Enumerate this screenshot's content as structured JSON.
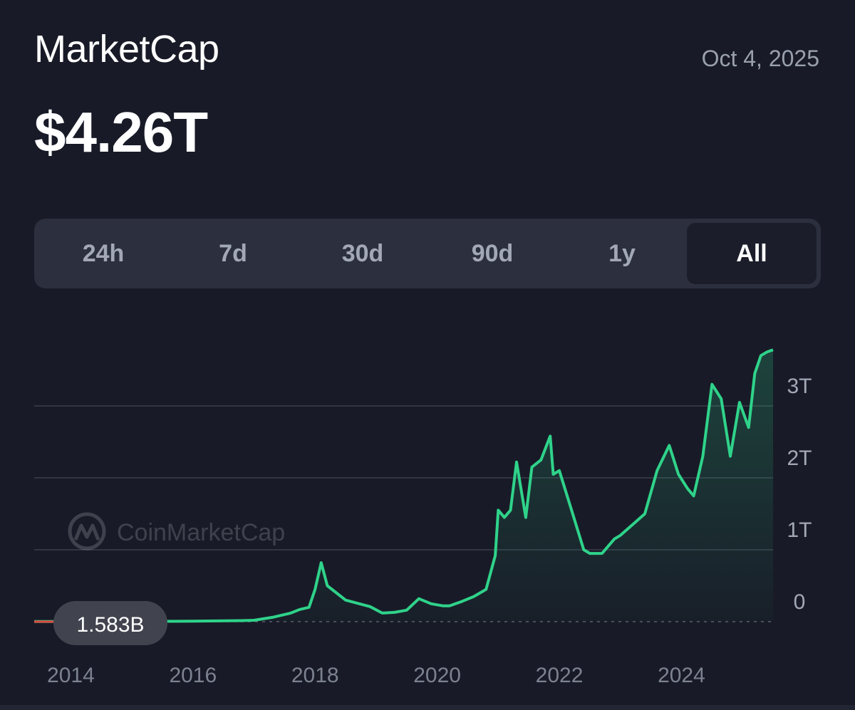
{
  "header": {
    "title": "MarketCap",
    "date": "Oct 4, 2025",
    "value": "$4.26T"
  },
  "tabs": [
    {
      "label": "24h",
      "active": false
    },
    {
      "label": "7d",
      "active": false
    },
    {
      "label": "30d",
      "active": false
    },
    {
      "label": "90d",
      "active": false
    },
    {
      "label": "1y",
      "active": false
    },
    {
      "label": "All",
      "active": true
    }
  ],
  "watermark": "CoinMarketCap",
  "colors": {
    "background": "#181b27",
    "line": "#2fd38a",
    "baseline_red": "#e0443e"
  },
  "chart_data": {
    "type": "area",
    "title": "",
    "xlabel": "",
    "ylabel": "",
    "x_ticks": [
      "2014",
      "2016",
      "2018",
      "2020",
      "2022",
      "2024"
    ],
    "y_ticks": [
      "0",
      "1T",
      "2T",
      "3T"
    ],
    "y_unit": "USD trillions",
    "ylim": [
      0,
      3.9
    ],
    "xlim": [
      2013.4,
      2025.5
    ],
    "grid": true,
    "start_label": "1.583B",
    "series": [
      {
        "x": [
          2013.4,
          2014.0,
          2015.0,
          2016.0,
          2016.8,
          2017.0,
          2017.3,
          2017.5,
          2017.6,
          2017.75,
          2017.9,
          2018.0,
          2018.1,
          2018.2,
          2018.5,
          2018.9,
          2019.1,
          2019.3,
          2019.5,
          2019.7,
          2019.9,
          2020.1,
          2020.2,
          2020.4,
          2020.6,
          2020.8,
          2020.95,
          2021.0,
          2021.1,
          2021.2,
          2021.3,
          2021.45,
          2021.55,
          2021.7,
          2021.85,
          2021.9,
          2022.0,
          2022.2,
          2022.4,
          2022.5,
          2022.6,
          2022.7,
          2022.9,
          2023.0,
          2023.2,
          2023.4,
          2023.6,
          2023.8,
          2023.95,
          2024.1,
          2024.2,
          2024.35,
          2024.5,
          2024.65,
          2024.8,
          2024.95,
          2025.1,
          2025.2,
          2025.3,
          2025.4,
          2025.5
        ],
        "y": [
          0.0016,
          0.003,
          0.004,
          0.007,
          0.015,
          0.02,
          0.06,
          0.1,
          0.12,
          0.17,
          0.2,
          0.45,
          0.82,
          0.5,
          0.3,
          0.21,
          0.12,
          0.13,
          0.16,
          0.32,
          0.25,
          0.22,
          0.22,
          0.28,
          0.35,
          0.45,
          0.92,
          1.55,
          1.45,
          1.55,
          2.22,
          1.45,
          2.15,
          2.25,
          2.58,
          2.05,
          2.1,
          1.55,
          1.0,
          0.95,
          0.95,
          0.95,
          1.15,
          1.2,
          1.35,
          1.5,
          2.1,
          2.45,
          2.05,
          1.85,
          1.75,
          2.3,
          3.3,
          3.1,
          2.3,
          3.05,
          2.7,
          3.45,
          3.7,
          3.75,
          3.78
        ]
      }
    ]
  }
}
